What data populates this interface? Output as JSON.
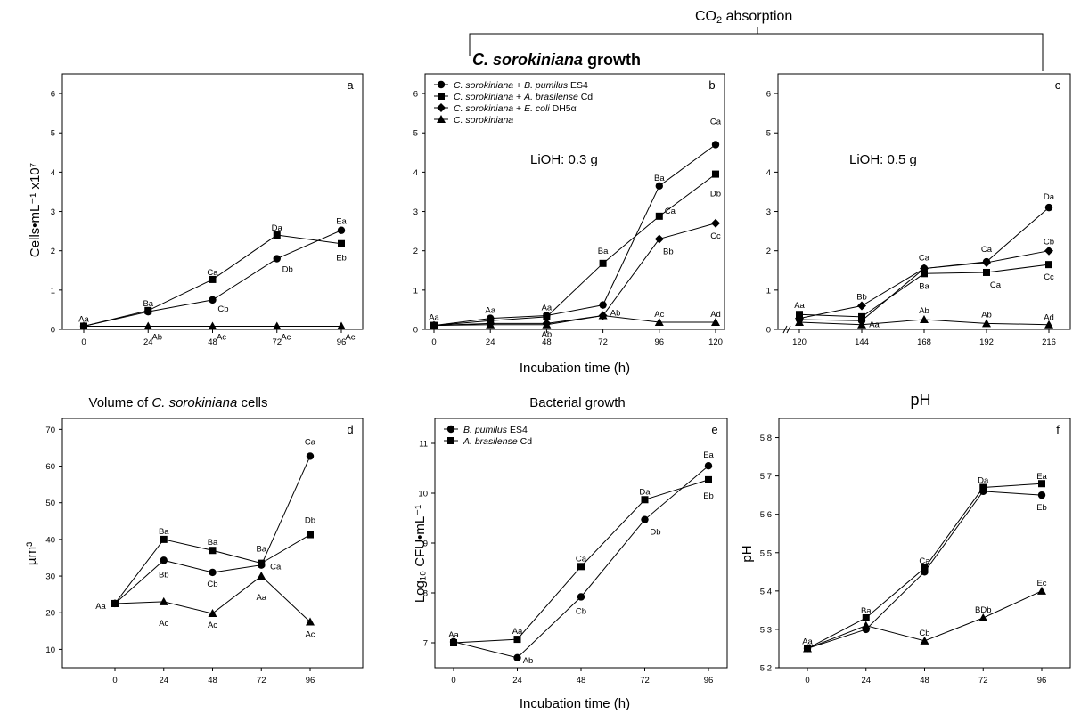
{
  "header": {
    "co2_title_main": "CO",
    "co2_title_sub": "2",
    "co2_title_rest": " absorption",
    "growth_title_italic": "C. sorokiniana",
    "growth_title_rest": " growth"
  },
  "shared": {
    "xlabel_top": "Incubation time (h)",
    "xlabel_bottom": "Incubation time (h)"
  },
  "chart_data": [
    {
      "id": "a",
      "type": "line",
      "panel_letter": "a",
      "ylabel": "Cells•mL⁻¹ x10⁷",
      "x": [
        0,
        24,
        48,
        72,
        96
      ],
      "xticks": [
        "0",
        "24",
        "48",
        "72",
        "96"
      ],
      "ylim": [
        0,
        6.5
      ],
      "yticks": [
        "0",
        "1",
        "2",
        "3",
        "4",
        "5",
        "6"
      ],
      "series": [
        {
          "marker": "square",
          "values": [
            0.08,
            0.48,
            1.27,
            2.4,
            2.18
          ],
          "labels": [
            "Aa",
            "Ba",
            "Ca",
            "Da",
            "Eb"
          ]
        },
        {
          "marker": "circle",
          "values": [
            0.08,
            0.45,
            0.75,
            1.8,
            2.52
          ],
          "labels": [
            "",
            "",
            "Cb",
            "Db",
            "Ea"
          ]
        },
        {
          "marker": "triangle",
          "values": [
            0.08,
            0.08,
            0.08,
            0.08,
            0.08
          ],
          "labels": [
            "",
            "Ab",
            "Ac",
            "Ac",
            "Ac"
          ]
        }
      ]
    },
    {
      "id": "b",
      "type": "line",
      "panel_letter": "b",
      "annotation": "LiOH: 0.3 g",
      "x": [
        0,
        24,
        48,
        72,
        96,
        120
      ],
      "xticks": [
        "0",
        "24",
        "48",
        "72",
        "96",
        "120"
      ],
      "ylim": [
        0,
        6.5
      ],
      "yticks": [
        "0",
        "1",
        "2",
        "3",
        "4",
        "5",
        "6"
      ],
      "legend_position": "top-left",
      "series": [
        {
          "name_italic": "C. sorokiniana",
          "name_mid": " + ",
          "name_italic2": "B. pumilus",
          "name_rest": " ES4",
          "marker": "circle",
          "values": [
            0.1,
            0.28,
            0.35,
            0.62,
            3.65,
            4.7
          ],
          "labels": [
            "Aa",
            "Aa",
            "Aa",
            "",
            "Ba",
            "Ca"
          ]
        },
        {
          "name_italic": "C. sorokiniana",
          "name_mid": " + ",
          "name_italic2": "A. brasilense",
          "name_rest": " Cd",
          "marker": "square",
          "values": [
            0.1,
            0.22,
            0.32,
            1.68,
            2.88,
            3.95
          ],
          "labels": [
            "",
            "",
            "",
            "Ba",
            "Ca",
            "Db"
          ]
        },
        {
          "name_italic": "C. sorokiniana",
          "name_mid": " + ",
          "name_italic2": "E. coli",
          "name_rest": " DH5α",
          "marker": "diamond",
          "values": [
            0.1,
            0.15,
            0.15,
            0.35,
            2.3,
            2.7
          ],
          "labels": [
            "",
            "",
            "Ab",
            "",
            "Bb",
            "Cc"
          ]
        },
        {
          "name_italic": "C. sorokiniana",
          "name_mid": "",
          "name_italic2": "",
          "name_rest": "",
          "marker": "triangle",
          "values": [
            0.1,
            0.12,
            0.12,
            0.35,
            0.18,
            0.18
          ],
          "labels": [
            "",
            "",
            "",
            "Ab",
            "Ac",
            "Ad"
          ]
        }
      ]
    },
    {
      "id": "c",
      "type": "line",
      "panel_letter": "c",
      "annotation": "LiOH: 0.5 g",
      "x": [
        120,
        144,
        168,
        192,
        216
      ],
      "xticks": [
        "120",
        "144",
        "168",
        "192",
        "216"
      ],
      "ylim": [
        0,
        6.5
      ],
      "yticks": [
        "0",
        "1",
        "2",
        "3",
        "4",
        "5",
        "6"
      ],
      "series": [
        {
          "marker": "circle",
          "values": [
            0.25,
            0.22,
            1.55,
            1.72,
            3.1
          ],
          "labels": [
            "",
            "",
            "Ca",
            "Ca",
            "Da"
          ]
        },
        {
          "marker": "diamond",
          "values": [
            0.28,
            0.6,
            1.55,
            1.7,
            2.0
          ],
          "labels": [
            "",
            "Bb",
            "",
            "",
            "Cb"
          ]
        },
        {
          "marker": "square",
          "values": [
            0.38,
            0.32,
            1.42,
            1.45,
            1.65
          ],
          "labels": [
            "Aa",
            "",
            "Ba",
            "Ca",
            "Cc"
          ]
        },
        {
          "marker": "triangle",
          "values": [
            0.18,
            0.12,
            0.25,
            0.15,
            0.12
          ],
          "labels": [
            "",
            "Aa",
            "Ab",
            "Ab",
            "Ad"
          ]
        }
      ]
    },
    {
      "id": "d",
      "type": "line",
      "panel_letter": "d",
      "title_pre": "Volume of ",
      "title_italic": "C. sorokiniana",
      "title_post": " cells",
      "ylabel": "µm³",
      "x": [
        0,
        24,
        48,
        72,
        96
      ],
      "xticks": [
        "0",
        "24",
        "48",
        "72",
        "96"
      ],
      "ylim": [
        5,
        73
      ],
      "yticks": [
        "10",
        "20",
        "30",
        "40",
        "50",
        "60",
        "70"
      ],
      "series": [
        {
          "marker": "circle",
          "values": [
            22.5,
            34.3,
            31.0,
            33.0,
            62.7
          ],
          "labels": [
            "Aa",
            "Bb",
            "Cb",
            "",
            "Ca"
          ]
        },
        {
          "marker": "square",
          "values": [
            22.5,
            40.0,
            37.0,
            33.5,
            41.3
          ],
          "labels": [
            "",
            "Ba",
            "Ba",
            "Ba",
            "Db"
          ]
        },
        {
          "marker": "triangle",
          "values": [
            22.5,
            23.0,
            19.8,
            30.0,
            17.5
          ],
          "labels": [
            "",
            "Ac",
            "Ac",
            "Aa",
            "Ac"
          ]
        }
      ],
      "extra_labels": [
        {
          "x": 72,
          "text": "Ca",
          "y": 33.0
        }
      ]
    },
    {
      "id": "e",
      "type": "line",
      "panel_letter": "e",
      "title": "Bacterial growth",
      "ylabel": "Log₁₀ CFU•mL⁻¹",
      "x": [
        0,
        24,
        48,
        72,
        96
      ],
      "xticks": [
        "0",
        "24",
        "48",
        "72",
        "96"
      ],
      "ylim": [
        6.5,
        11.5
      ],
      "yticks": [
        "7",
        "8",
        "9",
        "10",
        "11"
      ],
      "legend_position": "top-left",
      "series": [
        {
          "name_italic": "B. pumilus",
          "name_rest": " ES4",
          "marker": "circle",
          "values": [
            7.02,
            6.7,
            7.92,
            9.47,
            10.55
          ],
          "labels": [
            "",
            "Ab",
            "Cb",
            "Db",
            "Ea"
          ]
        },
        {
          "name_italic": "A. brasilense",
          "name_rest": " Cd",
          "marker": "square",
          "values": [
            7.0,
            7.07,
            8.53,
            9.87,
            10.27
          ],
          "labels": [
            "Aa",
            "Aa",
            "Ca",
            "Da",
            "Eb"
          ]
        }
      ]
    },
    {
      "id": "f",
      "type": "line",
      "panel_letter": "f",
      "title": "pH",
      "ylabel": "pH",
      "x": [
        0,
        24,
        48,
        72,
        96
      ],
      "xticks": [
        "0",
        "24",
        "48",
        "72",
        "96"
      ],
      "ylim": [
        5.2,
        5.85
      ],
      "yticks": [
        "5,2",
        "5,3",
        "5,4",
        "5,5",
        "5,6",
        "5,7",
        "5,8"
      ],
      "series": [
        {
          "marker": "square",
          "values": [
            5.25,
            5.33,
            5.46,
            5.67,
            5.68
          ],
          "labels": [
            "Aa",
            "Ba",
            "Ca",
            "Da",
            "Ea"
          ]
        },
        {
          "marker": "circle",
          "values": [
            5.25,
            5.3,
            5.45,
            5.66,
            5.65
          ],
          "labels": [
            "",
            "",
            "",
            "",
            "Eb"
          ]
        },
        {
          "marker": "triangle",
          "values": [
            5.25,
            5.31,
            5.27,
            5.33,
            5.4
          ],
          "labels": [
            "",
            "",
            "Cb",
            "BDb",
            "Ec"
          ]
        }
      ]
    }
  ]
}
